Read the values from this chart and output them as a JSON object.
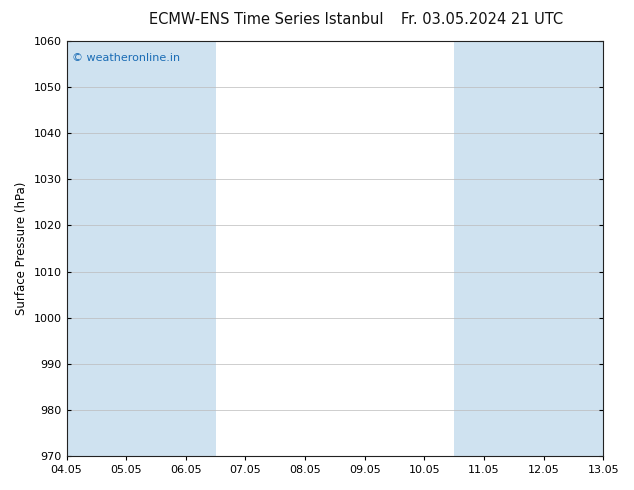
{
  "title_left": "ECMW-ENS Time Series Istanbul",
  "title_right": "Fr. 03.05.2024 21 UTC",
  "ylabel": "Surface Pressure (hPa)",
  "ylim": [
    970,
    1060
  ],
  "yticks": [
    970,
    980,
    990,
    1000,
    1010,
    1020,
    1030,
    1040,
    1050,
    1060
  ],
  "xlabel": "",
  "xtick_labels": [
    "04.05",
    "05.05",
    "06.05",
    "07.05",
    "08.05",
    "09.05",
    "10.05",
    "11.05",
    "12.05",
    "13.05"
  ],
  "xtick_positions": [
    0,
    1,
    2,
    3,
    4,
    5,
    6,
    7,
    8,
    9
  ],
  "xlim": [
    0,
    9
  ],
  "shaded_bands": [
    {
      "xstart": 0,
      "xend": 0.5,
      "color": "#cfe2f0"
    },
    {
      "xstart": 0.5,
      "xend": 1.5,
      "color": "#cfe2f0"
    },
    {
      "xstart": 1.5,
      "xend": 2.5,
      "color": "#cfe2f0"
    },
    {
      "xstart": 6.5,
      "xend": 7.5,
      "color": "#cfe2f0"
    },
    {
      "xstart": 7.5,
      "xend": 8.5,
      "color": "#cfe2f0"
    },
    {
      "xstart": 8.5,
      "xend": 9,
      "color": "#cfe2f0"
    }
  ],
  "watermark_text": "© weatheronline.in",
  "watermark_color": "#1a6cb5",
  "watermark_fontsize": 8.0,
  "background_color": "#ffffff",
  "plot_bg_color": "#ffffff",
  "title_fontsize": 10.5,
  "axis_label_fontsize": 8.5,
  "tick_fontsize": 8.0,
  "grid_color": "#bbbbbb",
  "spine_color": "#222222"
}
